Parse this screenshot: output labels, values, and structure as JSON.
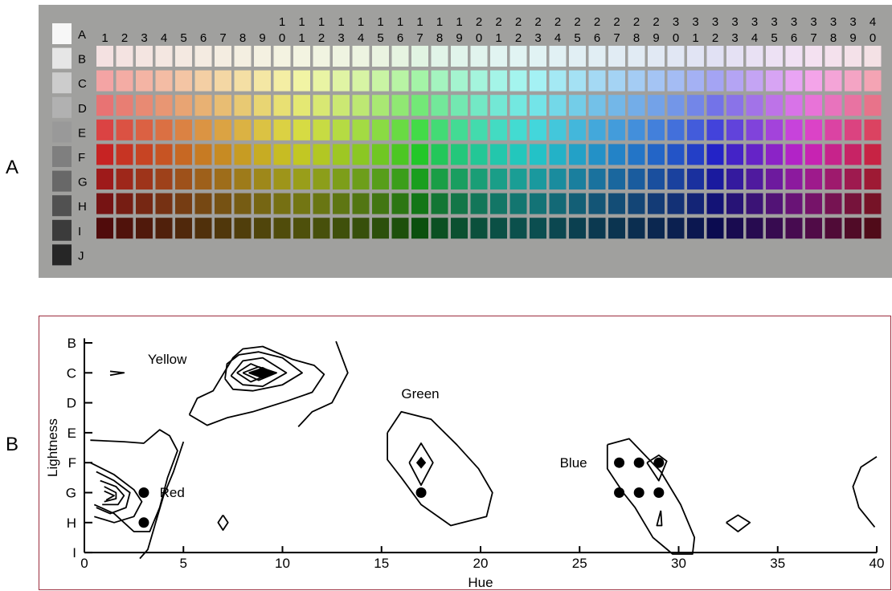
{
  "panel_labels": {
    "a": "A",
    "b": "B"
  },
  "colors": {
    "palette_background": "#a0a09e",
    "panel_border": "#9b2b3c",
    "contour_line": "#000000"
  },
  "chart_data": [
    {
      "type": "heatmap",
      "title": "",
      "columns": [
        "1",
        "2",
        "3",
        "4",
        "5",
        "6",
        "7",
        "8",
        "9",
        "10",
        "11",
        "12",
        "13",
        "14",
        "15",
        "16",
        "17",
        "18",
        "19",
        "20",
        "21",
        "22",
        "23",
        "24",
        "25",
        "26",
        "27",
        "28",
        "29",
        "30",
        "31",
        "32",
        "33",
        "34",
        "35",
        "36",
        "37",
        "38",
        "39",
        "40"
      ],
      "column_labels": [
        [
          "1"
        ],
        [
          "2"
        ],
        [
          "3"
        ],
        [
          "4"
        ],
        [
          "5"
        ],
        [
          "6"
        ],
        [
          "7"
        ],
        [
          "8"
        ],
        [
          "9"
        ],
        [
          "1",
          "0"
        ],
        [
          "1",
          "1"
        ],
        [
          "1",
          "2"
        ],
        [
          "1",
          "3"
        ],
        [
          "1",
          "4"
        ],
        [
          "1",
          "5"
        ],
        [
          "1",
          "6"
        ],
        [
          "1",
          "7"
        ],
        [
          "1",
          "8"
        ],
        [
          "1",
          "9"
        ],
        [
          "2",
          "0"
        ],
        [
          "2",
          "1"
        ],
        [
          "2",
          "2"
        ],
        [
          "2",
          "3"
        ],
        [
          "2",
          "4"
        ],
        [
          "2",
          "5"
        ],
        [
          "2",
          "6"
        ],
        [
          "2",
          "7"
        ],
        [
          "2",
          "8"
        ],
        [
          "2",
          "9"
        ],
        [
          "3",
          "0"
        ],
        [
          "3",
          "1"
        ],
        [
          "3",
          "2"
        ],
        [
          "3",
          "3"
        ],
        [
          "3",
          "4"
        ],
        [
          "3",
          "5"
        ],
        [
          "3",
          "6"
        ],
        [
          "3",
          "7"
        ],
        [
          "3",
          "8"
        ],
        [
          "3",
          "9"
        ],
        [
          "4",
          "0"
        ]
      ],
      "achromatic_rows": [
        "A",
        "B",
        "C",
        "D",
        "E",
        "F",
        "G",
        "H",
        "I",
        "J"
      ],
      "achromatic_colors": [
        "#f7f7f7",
        "#e6e6e6",
        "#cccccc",
        "#b1b1b1",
        "#999999",
        "#7f7f7f",
        "#686868",
        "#515151",
        "#3b3b3b",
        "#262626"
      ],
      "chromatic_rows": [
        "B",
        "C",
        "D",
        "E",
        "F",
        "G",
        "H",
        "I"
      ],
      "row_lightness": [
        0.92,
        0.8,
        0.68,
        0.56,
        0.46,
        0.36,
        0.27,
        0.18
      ],
      "row_saturation": [
        0.45,
        0.78,
        0.72,
        0.68,
        0.7,
        0.72,
        0.72,
        0.75
      ]
    },
    {
      "type": "line",
      "title": "",
      "xlabel": "Hue",
      "ylabel": "Lightness",
      "xlim": [
        0,
        40
      ],
      "x_ticks": [
        0,
        5,
        10,
        15,
        20,
        25,
        30,
        35,
        40
      ],
      "y_ticks": [
        "B",
        "C",
        "D",
        "E",
        "F",
        "G",
        "H",
        "I"
      ],
      "y_tick_values": [
        1,
        2,
        3,
        4,
        5,
        6,
        7,
        8
      ],
      "annotations": [
        {
          "text": "Yellow",
          "x": 3.2,
          "y": 1.7
        },
        {
          "text": "Green",
          "x": 16,
          "y": 2.85
        },
        {
          "text": "Blue",
          "x": 24,
          "y": 5.15
        },
        {
          "text": "Red",
          "x": 3.8,
          "y": 6.15
        }
      ],
      "points": [
        {
          "x": 3,
          "y": 6
        },
        {
          "x": 3,
          "y": 7
        },
        {
          "x": 17,
          "y": 6
        },
        {
          "x": 27,
          "y": 5
        },
        {
          "x": 28,
          "y": 5
        },
        {
          "x": 29,
          "y": 5
        },
        {
          "x": 27,
          "y": 6
        },
        {
          "x": 28,
          "y": 6
        },
        {
          "x": 29,
          "y": 6
        }
      ],
      "filled_peaks": [
        {
          "x": 9,
          "y": 2,
          "rx": 0.6,
          "ry": 0.2
        },
        {
          "x": 17,
          "y": 5,
          "rx": 0.25,
          "ry": 0.2
        }
      ],
      "contours": [
        [
          [
            1.3,
            1.95
          ],
          [
            2.0,
            2.0
          ],
          [
            1.3,
            2.08
          ]
        ],
        [
          [
            5.3,
            3.4
          ],
          [
            5.7,
            2.85
          ],
          [
            6.5,
            2.6
          ],
          [
            7.5,
            1.5
          ],
          [
            8.0,
            1.2
          ],
          [
            9.0,
            1.12
          ],
          [
            10.5,
            1.55
          ],
          [
            11.6,
            1.75
          ],
          [
            12.1,
            2.05
          ],
          [
            11.5,
            2.65
          ],
          [
            10.2,
            2.95
          ],
          [
            8.5,
            3.3
          ],
          [
            7.2,
            3.5
          ],
          [
            6.2,
            3.75
          ],
          [
            5.3,
            3.4
          ]
        ],
        [
          [
            7.1,
            2.2
          ],
          [
            7.2,
            1.7
          ],
          [
            7.8,
            1.4
          ],
          [
            8.8,
            1.3
          ],
          [
            10.0,
            1.5
          ],
          [
            11.0,
            2.0
          ],
          [
            10.0,
            2.4
          ],
          [
            8.5,
            2.6
          ],
          [
            7.5,
            2.55
          ],
          [
            7.1,
            2.2
          ]
        ],
        [
          [
            7.4,
            2.1
          ],
          [
            8.0,
            1.6
          ],
          [
            9.0,
            1.5
          ],
          [
            10.2,
            2.0
          ],
          [
            9.0,
            2.45
          ],
          [
            8.0,
            2.4
          ],
          [
            7.4,
            2.1
          ]
        ],
        [
          [
            7.7,
            2.0
          ],
          [
            8.4,
            1.7
          ],
          [
            9.5,
            2.0
          ],
          [
            8.4,
            2.3
          ],
          [
            7.7,
            2.0
          ]
        ],
        [
          [
            8.0,
            2.0
          ],
          [
            8.8,
            1.8
          ],
          [
            9.7,
            2.0
          ],
          [
            8.8,
            2.25
          ],
          [
            8.0,
            2.0
          ]
        ],
        [
          [
            8.3,
            2.0
          ],
          [
            9.0,
            1.85
          ],
          [
            9.5,
            2.0
          ],
          [
            9.0,
            2.17
          ],
          [
            8.3,
            2.0
          ]
        ],
        [
          [
            12.7,
            0.95
          ],
          [
            13.3,
            2.0
          ],
          [
            12.5,
            3.0
          ],
          [
            11.5,
            3.3
          ],
          [
            10.8,
            3.8
          ]
        ],
        [
          [
            0.3,
            4.25
          ],
          [
            2.0,
            4.3
          ],
          [
            3.0,
            4.35
          ],
          [
            3.8,
            3.9
          ],
          [
            4.3,
            4.1
          ],
          [
            4.7,
            4.6
          ],
          [
            4.2,
            5.5
          ],
          [
            3.8,
            6.5
          ],
          [
            3.3,
            7.3
          ],
          [
            2.5,
            7.3
          ],
          [
            1.5,
            6.7
          ],
          [
            0.5,
            6.4
          ]
        ],
        [
          [
            5.0,
            4.3
          ],
          [
            4.5,
            5.3
          ],
          [
            4.0,
            6.1
          ],
          [
            3.6,
            7.0
          ],
          [
            3.2,
            7.9
          ],
          [
            2.8,
            8.2
          ]
        ],
        [
          [
            0.3,
            5.0
          ],
          [
            1.5,
            5.4
          ],
          [
            2.5,
            5.9
          ],
          [
            2.9,
            6.3
          ],
          [
            2.5,
            6.8
          ],
          [
            1.5,
            7.0
          ],
          [
            0.5,
            6.8
          ]
        ],
        [
          [
            0.6,
            5.3
          ],
          [
            1.5,
            5.6
          ],
          [
            2.3,
            6.0
          ],
          [
            2.1,
            6.5
          ],
          [
            1.3,
            6.7
          ],
          [
            0.6,
            6.5
          ]
        ],
        [
          [
            0.8,
            5.6
          ],
          [
            1.6,
            5.8
          ],
          [
            2.0,
            6.1
          ],
          [
            1.7,
            6.4
          ],
          [
            0.9,
            6.4
          ]
        ],
        [
          [
            1.0,
            5.8
          ],
          [
            1.6,
            6.0
          ],
          [
            1.6,
            6.2
          ],
          [
            1.0,
            6.3
          ]
        ],
        [
          [
            1.0,
            5.95
          ],
          [
            1.5,
            6.1
          ],
          [
            1.1,
            6.25
          ]
        ],
        [
          [
            7.0,
            6.75
          ],
          [
            7.25,
            7.0
          ],
          [
            7.0,
            7.25
          ],
          [
            6.75,
            7.0
          ],
          [
            7.0,
            6.75
          ]
        ],
        [
          [
            15.3,
            4.0
          ],
          [
            16.0,
            3.3
          ],
          [
            17.5,
            3.55
          ],
          [
            18.8,
            4.4
          ],
          [
            19.9,
            5.2
          ],
          [
            20.6,
            6.0
          ],
          [
            20.3,
            6.8
          ],
          [
            18.5,
            7.1
          ],
          [
            17.0,
            6.4
          ],
          [
            16.0,
            5.5
          ],
          [
            15.3,
            4.9
          ],
          [
            15.3,
            4.0
          ]
        ],
        [
          [
            16.4,
            5.0
          ],
          [
            17.0,
            4.35
          ],
          [
            17.6,
            5.0
          ],
          [
            17.0,
            5.75
          ],
          [
            16.4,
            5.0
          ]
        ],
        [
          [
            26.4,
            4.4
          ],
          [
            27.5,
            4.2
          ],
          [
            29.1,
            5.3
          ],
          [
            30.1,
            6.4
          ],
          [
            30.8,
            7.5
          ],
          [
            30.7,
            8.05
          ],
          [
            29.7,
            8.05
          ],
          [
            28.7,
            7.5
          ],
          [
            27.8,
            6.5
          ],
          [
            27.2,
            6.0
          ],
          [
            26.4,
            5.2
          ],
          [
            26.4,
            4.4
          ]
        ],
        [
          [
            28.4,
            5.0
          ],
          [
            29.0,
            4.75
          ],
          [
            29.4,
            4.95
          ],
          [
            29.0,
            5.6
          ],
          [
            28.4,
            5.0
          ]
        ],
        [
          [
            29.1,
            6.6
          ],
          [
            28.9,
            7.1
          ],
          [
            29.15,
            7.1
          ],
          [
            29.1,
            6.6
          ]
        ],
        [
          [
            32.4,
            7.0
          ],
          [
            33.0,
            6.75
          ],
          [
            33.6,
            7.0
          ],
          [
            33.0,
            7.3
          ],
          [
            32.4,
            7.0
          ]
        ],
        [
          [
            40.0,
            4.8
          ],
          [
            39.2,
            5.15
          ],
          [
            38.8,
            5.8
          ],
          [
            39.1,
            6.5
          ],
          [
            39.9,
            7.15
          ]
        ]
      ]
    }
  ]
}
